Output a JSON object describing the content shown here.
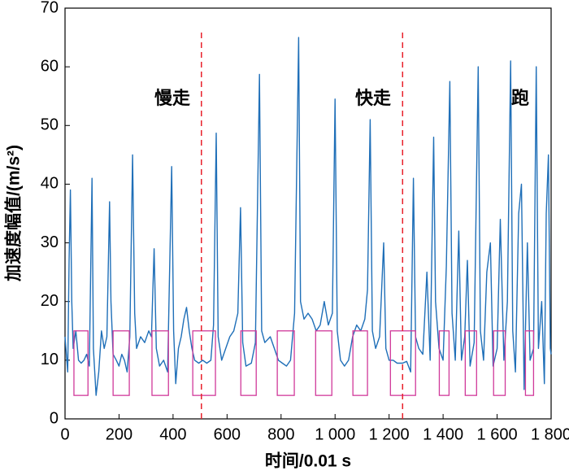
{
  "chart_data": {
    "type": "line",
    "xlabel": "时间/0.01 s",
    "ylabel": "加速度幅值/(m/s²)",
    "annotations": [
      "慢走",
      "快走",
      "跑"
    ],
    "xlim": [
      0,
      1800
    ],
    "ylim": [
      0,
      70
    ],
    "xticks": [
      0,
      200,
      400,
      600,
      800,
      {
        "value": 1000,
        "label": "1 000"
      },
      {
        "value": 1200,
        "label": "1 200"
      },
      {
        "value": 1400,
        "label": "1 400"
      },
      {
        "value": 1600,
        "label": "1 600"
      },
      {
        "value": 1800,
        "label": "1 800"
      }
    ],
    "yticks": [
      0,
      10,
      20,
      30,
      40,
      50,
      60,
      70
    ],
    "vlines": [
      505,
      1250
    ],
    "vline_color": "#e8202a",
    "regions": [
      [
        33,
        85
      ],
      [
        178,
        238
      ],
      [
        322,
        383
      ],
      [
        473,
        557
      ],
      [
        651,
        708
      ],
      [
        786,
        849
      ],
      [
        928,
        988
      ],
      [
        1066,
        1120
      ],
      [
        1205,
        1298
      ],
      [
        1386,
        1422
      ],
      [
        1482,
        1524
      ],
      [
        1587,
        1630
      ],
      [
        1705,
        1735
      ]
    ],
    "region_y": [
      4,
      15
    ],
    "region_color": "#d0399a",
    "series": [
      {
        "color": "#1f6fb8",
        "x": [
          0,
          10,
          15,
          20,
          25,
          30,
          40,
          50,
          60,
          70,
          80,
          90,
          100,
          105,
          115,
          125,
          135,
          145,
          155,
          165,
          170,
          178,
          190,
          200,
          210,
          220,
          230,
          240,
          250,
          258,
          265,
          280,
          295,
          310,
          320,
          330,
          338,
          350,
          365,
          380,
          395,
          402,
          410,
          420,
          430,
          440,
          450,
          460,
          470,
          480,
          495,
          510,
          525,
          540,
          550,
          560,
          567,
          580,
          595,
          610,
          625,
          640,
          650,
          658,
          670,
          690,
          705,
          720,
          728,
          740,
          760,
          775,
          790,
          805,
          820,
          835,
          850,
          865,
          872,
          885,
          900,
          915,
          930,
          945,
          960,
          975,
          990,
          1000,
          1008,
          1020,
          1035,
          1050,
          1065,
          1080,
          1095,
          1110,
          1120,
          1130,
          1138,
          1150,
          1165,
          1180,
          1188,
          1200,
          1215,
          1230,
          1250,
          1265,
          1280,
          1290,
          1298,
          1310,
          1325,
          1340,
          1352,
          1365,
          1372,
          1385,
          1400,
          1412,
          1425,
          1433,
          1445,
          1458,
          1468,
          1480,
          1490,
          1500,
          1515,
          1530,
          1538,
          1550,
          1562,
          1575,
          1585,
          1600,
          1612,
          1625,
          1638,
          1650,
          1658,
          1668,
          1680,
          1690,
          1700,
          1712,
          1722,
          1735,
          1745,
          1753,
          1765,
          1775,
          1782,
          1790,
          1797,
          1800
        ],
        "values": [
          14,
          8,
          27,
          39,
          20,
          12,
          15,
          10,
          9.5,
          10,
          11,
          9,
          41,
          12,
          4,
          8,
          15,
          12,
          14,
          37,
          20,
          11,
          10,
          9,
          11,
          10,
          8,
          14,
          45,
          18,
          12,
          14,
          13,
          15,
          14,
          29,
          12,
          9,
          10,
          8,
          43,
          15,
          6,
          12,
          14,
          17,
          19,
          15,
          12,
          10,
          9.5,
          10,
          9.5,
          10,
          16,
          48.7,
          14,
          10,
          12,
          14,
          15,
          18,
          36,
          13,
          9,
          9.5,
          13,
          58.7,
          15,
          13,
          14,
          12,
          10,
          9.5,
          9,
          10,
          18,
          65,
          20,
          17,
          18,
          17,
          15,
          16,
          20,
          16,
          18,
          54.5,
          15,
          10,
          9,
          10,
          14,
          16,
          15,
          17,
          22,
          51,
          15,
          12,
          14,
          30,
          12,
          10,
          10,
          9.5,
          9.5,
          9.8,
          8,
          41,
          14,
          12,
          11,
          25,
          10,
          48,
          20,
          12,
          10,
          26,
          57.5,
          18,
          10,
          32,
          10,
          14,
          27,
          9,
          13,
          60,
          15,
          10,
          25,
          30,
          9,
          12,
          34,
          10,
          20,
          61,
          15,
          8,
          35,
          40,
          5,
          30,
          10,
          12,
          60,
          12,
          20,
          6,
          35,
          45,
          12,
          11
        ]
      }
    ]
  }
}
